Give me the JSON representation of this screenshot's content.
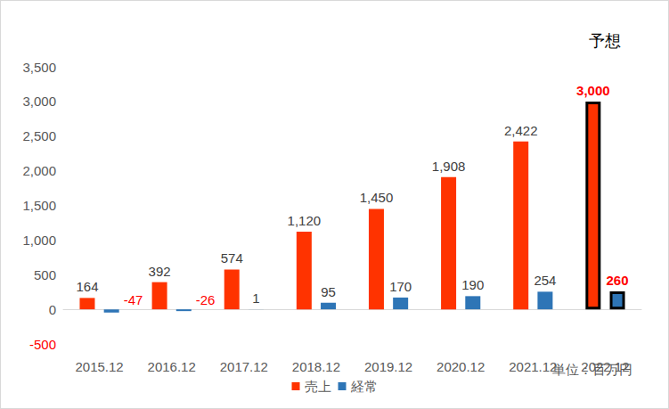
{
  "chart_data": {
    "type": "bar",
    "categories": [
      "2015.12",
      "2016.12",
      "2017.12",
      "2018.12",
      "2019.12",
      "2020.12",
      "2021.12",
      "2022.12"
    ],
    "series": [
      {
        "name": "売上",
        "color": "#ff3300",
        "values": [
          164,
          392,
          574,
          1120,
          1450,
          1908,
          2422,
          3000
        ],
        "value_labels": [
          "164",
          "392",
          "574",
          "1,120",
          "1,450",
          "1,908",
          "2,422",
          "3,000"
        ]
      },
      {
        "name": "経常",
        "color": "#2e75b6",
        "values": [
          -47,
          -26,
          1,
          95,
          170,
          190,
          254,
          260
        ]
      }
    ],
    "ylim": [
      -500,
      3500
    ],
    "yticks": [
      -500,
      0,
      500,
      {
        "value": 1000,
        "label": "1,000"
      },
      {
        "value": 1500,
        "label": "1,500"
      },
      {
        "value": 2000,
        "label": "2,000"
      },
      {
        "value": 2500,
        "label": "2,500"
      },
      {
        "value": 3000,
        "label": "3,000"
      },
      {
        "value": 3500,
        "label": "3,500"
      }
    ],
    "grid": false,
    "legend": "bottom",
    "data_labels": true,
    "annotations": [
      {
        "text": "予想",
        "category": "2022.12"
      },
      {
        "text": "単位：百万円"
      }
    ]
  }
}
